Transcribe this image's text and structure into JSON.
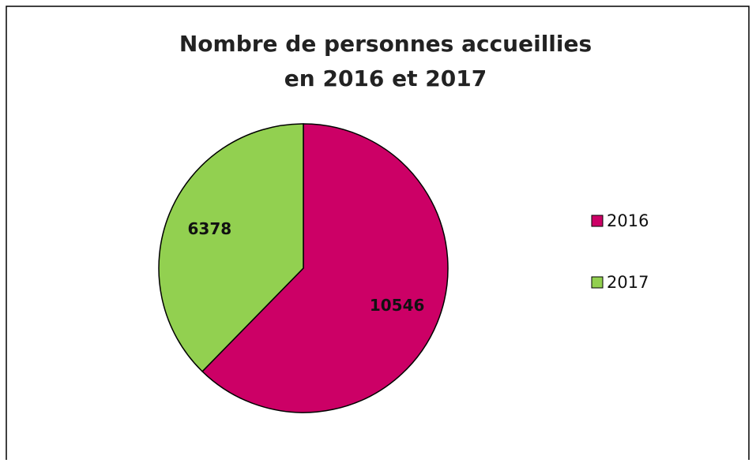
{
  "chart_data": {
    "type": "pie",
    "title": [
      "Nombre de personnes accueillies",
      "en 2016 et 2017"
    ],
    "categories": [
      "2016",
      "2017"
    ],
    "values": [
      10546,
      6378
    ],
    "colors": [
      "#cc0066",
      "#92d050"
    ],
    "legend": "right"
  }
}
